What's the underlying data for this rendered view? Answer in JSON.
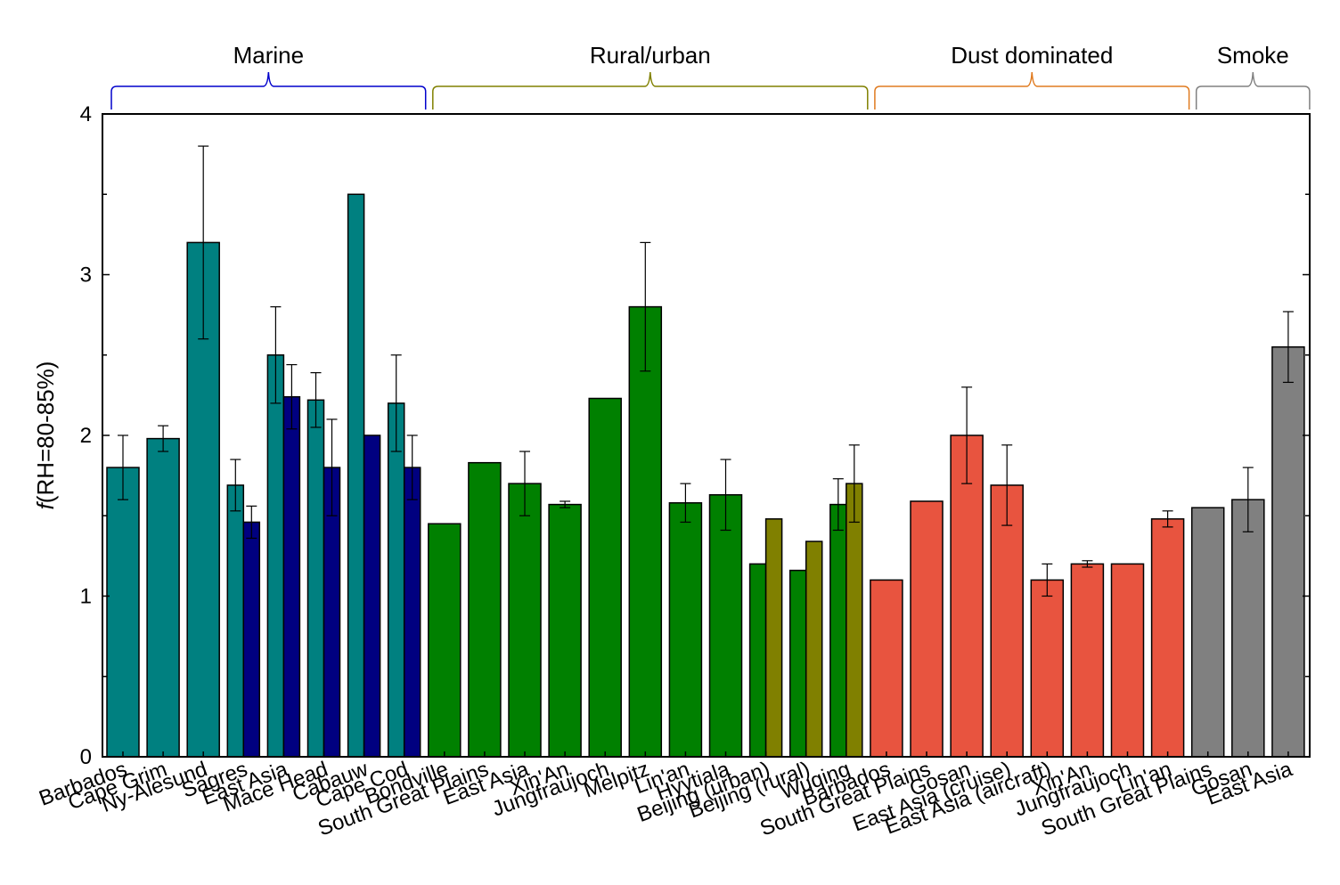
{
  "chart_data": {
    "type": "bar",
    "ylabel_italic": "f",
    "ylabel": "(RH=80-85%)",
    "ylim": [
      0,
      4
    ],
    "yticks": [
      "0",
      "1",
      "2",
      "3",
      "4"
    ],
    "colors": {
      "teal": "#008080",
      "navy": "#000080",
      "green": "#008000",
      "olive": "#808000",
      "red": "#e8543f",
      "gray": "#808080",
      "marine_brace": "#0000cc",
      "rural_brace": "#808000",
      "dust_brace": "#e07b20",
      "smoke_brace": "#808080"
    },
    "groups": [
      {
        "label": "Marine",
        "brace_color": "marine_brace",
        "start": 0,
        "end": 7
      },
      {
        "label": "Rural/urban",
        "brace_color": "rural_brace",
        "start": 8,
        "end": 18
      },
      {
        "label": "Dust dominated",
        "brace_color": "dust_brace",
        "start": 19,
        "end": 26
      },
      {
        "label": "Smoke",
        "brace_color": "smoke_brace",
        "start": 27,
        "end": 29
      }
    ],
    "categories": [
      {
        "label": "Barbados",
        "bars": [
          {
            "value": 1.8,
            "err": 0.2,
            "color": "teal"
          }
        ]
      },
      {
        "label": "Cape Grim",
        "bars": [
          {
            "value": 1.98,
            "err": 0.08,
            "color": "teal"
          }
        ]
      },
      {
        "label": "Ny-Alesund",
        "bars": [
          {
            "value": 3.2,
            "err": 0.6,
            "color": "teal"
          }
        ]
      },
      {
        "label": "Sagres",
        "bars": [
          {
            "value": 1.69,
            "err": 0.16,
            "color": "teal"
          },
          {
            "value": 1.46,
            "err": 0.1,
            "color": "navy"
          }
        ]
      },
      {
        "label": "East Asia",
        "bars": [
          {
            "value": 2.5,
            "err": 0.3,
            "color": "teal"
          },
          {
            "value": 2.24,
            "err": 0.2,
            "color": "navy"
          }
        ]
      },
      {
        "label": "Mace Head",
        "bars": [
          {
            "value": 2.22,
            "err": 0.17,
            "color": "teal"
          },
          {
            "value": 1.8,
            "err": 0.3,
            "color": "navy"
          }
        ]
      },
      {
        "label": "Cabauw",
        "bars": [
          {
            "value": 3.5,
            "err": 0,
            "color": "teal"
          },
          {
            "value": 2.0,
            "err": 0,
            "color": "navy"
          }
        ]
      },
      {
        "label": "Cape Cod",
        "bars": [
          {
            "value": 2.2,
            "err": 0.3,
            "color": "teal"
          },
          {
            "value": 1.8,
            "err": 0.2,
            "color": "navy"
          }
        ]
      },
      {
        "label": "Bondville",
        "bars": [
          {
            "value": 1.45,
            "err": 0,
            "color": "green"
          }
        ]
      },
      {
        "label": "South Great Plains",
        "bars": [
          {
            "value": 1.83,
            "err": 0,
            "color": "green"
          }
        ]
      },
      {
        "label": "East Asia",
        "bars": [
          {
            "value": 1.7,
            "err": 0.2,
            "color": "green"
          }
        ]
      },
      {
        "label": "Xin'An",
        "bars": [
          {
            "value": 1.57,
            "err": 0.02,
            "color": "green"
          }
        ]
      },
      {
        "label": "Jungfraujoch",
        "bars": [
          {
            "value": 2.23,
            "err": 0,
            "color": "green"
          }
        ]
      },
      {
        "label": "Melpitz",
        "bars": [
          {
            "value": 2.8,
            "err": 0.4,
            "color": "green"
          }
        ]
      },
      {
        "label": "Lin'an",
        "bars": [
          {
            "value": 1.58,
            "err": 0.12,
            "color": "green"
          }
        ]
      },
      {
        "label": "Hyytiala",
        "bars": [
          {
            "value": 1.63,
            "err": 0.22,
            "color": "green"
          }
        ]
      },
      {
        "label": "Beijing (urban)",
        "bars": [
          {
            "value": 1.2,
            "err": 0,
            "color": "green"
          },
          {
            "value": 1.48,
            "err": 0,
            "color": "olive"
          }
        ]
      },
      {
        "label": "Beijing (rural)",
        "bars": [
          {
            "value": 1.16,
            "err": 0,
            "color": "green"
          },
          {
            "value": 1.34,
            "err": 0,
            "color": "olive"
          }
        ]
      },
      {
        "label": "Wuqing",
        "bars": [
          {
            "value": 1.57,
            "err": 0.16,
            "color": "green"
          },
          {
            "value": 1.7,
            "err": 0.24,
            "color": "olive"
          }
        ]
      },
      {
        "label": "Barbados",
        "bars": [
          {
            "value": 1.1,
            "err": 0,
            "color": "red"
          }
        ]
      },
      {
        "label": "South Great Plains",
        "bars": [
          {
            "value": 1.59,
            "err": 0,
            "color": "red"
          }
        ]
      },
      {
        "label": "Gosan",
        "bars": [
          {
            "value": 2.0,
            "err": 0.3,
            "color": "red"
          }
        ]
      },
      {
        "label": "East Asia (cruise)",
        "bars": [
          {
            "value": 1.69,
            "err": 0.25,
            "color": "red"
          }
        ]
      },
      {
        "label": "East Asia (aircraft)",
        "bars": [
          {
            "value": 1.1,
            "err": 0.1,
            "color": "red"
          }
        ]
      },
      {
        "label": "Xin'An",
        "bars": [
          {
            "value": 1.2,
            "err": 0.02,
            "color": "red"
          }
        ]
      },
      {
        "label": "Jungfraujoch",
        "bars": [
          {
            "value": 1.2,
            "err": 0,
            "color": "red"
          }
        ]
      },
      {
        "label": "Lin'an",
        "bars": [
          {
            "value": 1.48,
            "err": 0.05,
            "color": "red"
          }
        ]
      },
      {
        "label": "South Great Plains",
        "bars": [
          {
            "value": 1.55,
            "err": 0,
            "color": "gray"
          }
        ]
      },
      {
        "label": "Gosan",
        "bars": [
          {
            "value": 1.6,
            "err": 0.2,
            "color": "gray"
          }
        ]
      },
      {
        "label": "East Asia",
        "bars": [
          {
            "value": 2.55,
            "err": 0.22,
            "color": "gray"
          }
        ]
      }
    ]
  }
}
